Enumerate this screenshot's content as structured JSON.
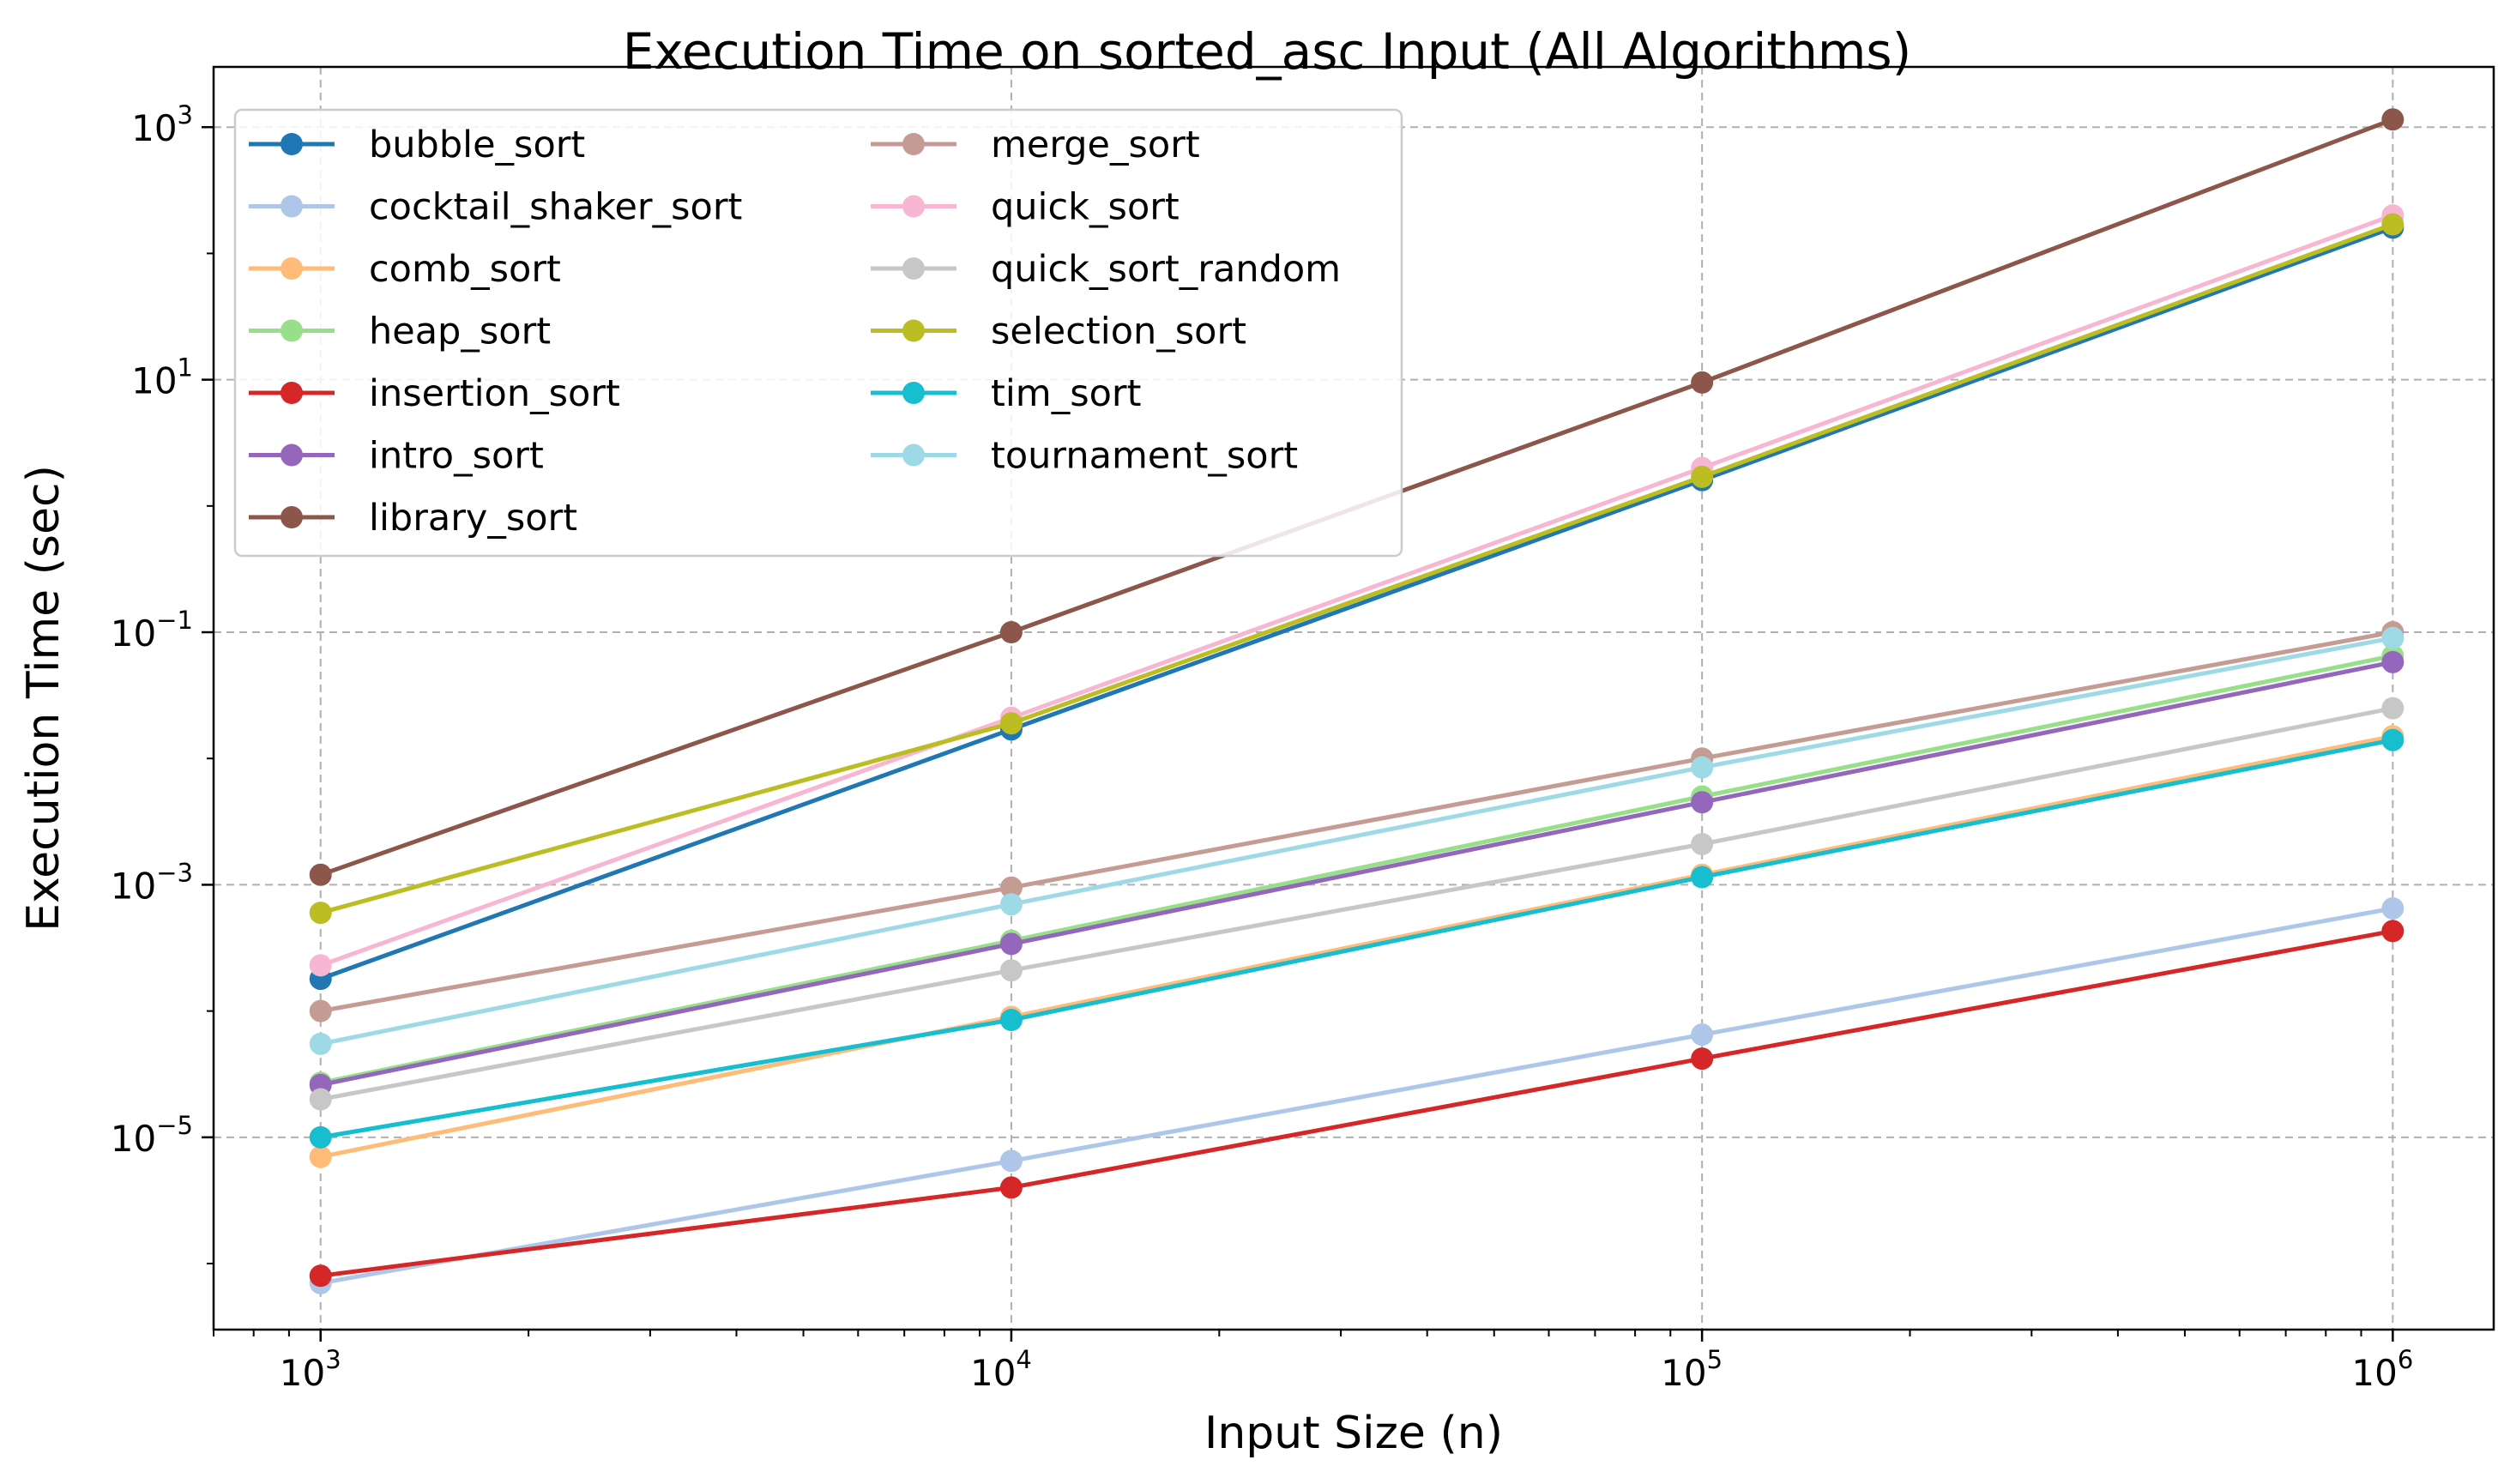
{
  "chart_data": {
    "type": "line",
    "title": "Execution Time on sorted_asc Input (All Algorithms)",
    "xlabel": "Input Size (n)",
    "ylabel": "Execution Time (sec)",
    "xscale": "log",
    "yscale": "log",
    "xlim": [
      700,
      1400000
    ],
    "ylim": [
      3e-07,
      3000
    ],
    "grid": true,
    "legend_position": "top-left",
    "x": [
      1000,
      10000,
      100000,
      1000000
    ],
    "xticks": [
      {
        "value": 1000,
        "base": "10",
        "exp": "3"
      },
      {
        "value": 10000,
        "base": "10",
        "exp": "4"
      },
      {
        "value": 100000,
        "base": "10",
        "exp": "5"
      },
      {
        "value": 1000000,
        "base": "10",
        "exp": "6"
      }
    ],
    "yticks": [
      {
        "value": 1e-05,
        "base": "10",
        "exp": "−5"
      },
      {
        "value": 0.001,
        "base": "10",
        "exp": "−3"
      },
      {
        "value": 0.1,
        "base": "10",
        "exp": "−1"
      },
      {
        "value": 10,
        "base": "10",
        "exp": "1"
      },
      {
        "value": 1000,
        "base": "10",
        "exp": "3"
      }
    ],
    "series": [
      {
        "name": "bubble_sort",
        "color": "#1f77b4",
        "values": [
          0.00018,
          0.017,
          1.6,
          160
        ]
      },
      {
        "name": "cocktail_shaker_sort",
        "color": "#aec7e8",
        "values": [
          7e-07,
          6.5e-06,
          6.5e-05,
          0.00065
        ]
      },
      {
        "name": "comb_sort",
        "color": "#ffbb78",
        "values": [
          7e-06,
          9e-05,
          0.0012,
          0.015
        ]
      },
      {
        "name": "heap_sort",
        "color": "#98df8a",
        "values": [
          2.7e-05,
          0.00036,
          0.005,
          0.065
        ]
      },
      {
        "name": "insertion_sort",
        "color": "#d62728",
        "values": [
          8e-07,
          4e-06,
          4.2e-05,
          0.00043
        ]
      },
      {
        "name": "intro_sort",
        "color": "#9467bd",
        "values": [
          2.6e-05,
          0.00034,
          0.0045,
          0.058
        ]
      },
      {
        "name": "library_sort",
        "color": "#8c564b",
        "values": [
          0.0012,
          0.1,
          9.5,
          1150
        ]
      },
      {
        "name": "merge_sort",
        "color": "#c49c94",
        "values": [
          0.0001,
          0.00095,
          0.01,
          0.1
        ]
      },
      {
        "name": "quick_sort",
        "color": "#f7b6d2",
        "values": [
          0.00023,
          0.021,
          2.0,
          200
        ]
      },
      {
        "name": "quick_sort_random",
        "color": "#c7c7c7",
        "values": [
          2e-05,
          0.00021,
          0.0021,
          0.025
        ]
      },
      {
        "name": "selection_sort",
        "color": "#bcbd22",
        "values": [
          0.0006,
          0.019,
          1.7,
          170
        ]
      },
      {
        "name": "tim_sort",
        "color": "#17becf",
        "values": [
          1e-05,
          8.5e-05,
          0.00115,
          0.014
        ]
      },
      {
        "name": "tournament_sort",
        "color": "#9edae5",
        "values": [
          5.5e-05,
          0.0007,
          0.0085,
          0.09
        ]
      }
    ]
  }
}
